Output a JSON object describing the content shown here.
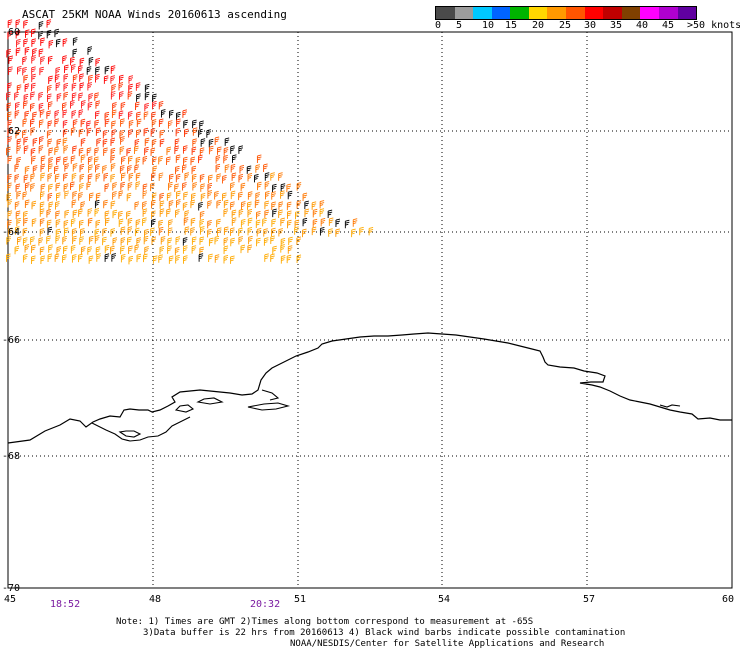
{
  "title": "ASCAT 25KM NOAA Winds 20160613 ascending",
  "legend": {
    "colors": [
      "#4a4a4a",
      "#9c9c9c",
      "#00c8ff",
      "#0064ff",
      "#00b400",
      "#ffd700",
      "#ff9900",
      "#ff5500",
      "#ff0000",
      "#c00000",
      "#804000",
      "#ff00ff",
      "#b000d0",
      "#6000a0"
    ],
    "labels": [
      "0",
      "5",
      "10",
      "15",
      "20",
      "25",
      "30",
      "35",
      "40",
      "45",
      ">50 knots"
    ]
  },
  "axes": {
    "lat_labels": [
      "-60",
      "-62",
      "-64",
      "-66",
      "-68",
      "-70"
    ],
    "lon_labels": [
      "45",
      "48",
      "51",
      "54",
      "57",
      "60"
    ]
  },
  "times": [
    "18:52",
    "20:32"
  ],
  "notes": [
    "Note: 1) Times are GMT 2)Times along bottom correspond to measurement at -65S",
    "3)Data buffer is 22 hrs from 20160613 4) Black wind barbs indicate possible contamination",
    "NOAA/NESDIS/Center for Satellite Applications and Research"
  ]
}
